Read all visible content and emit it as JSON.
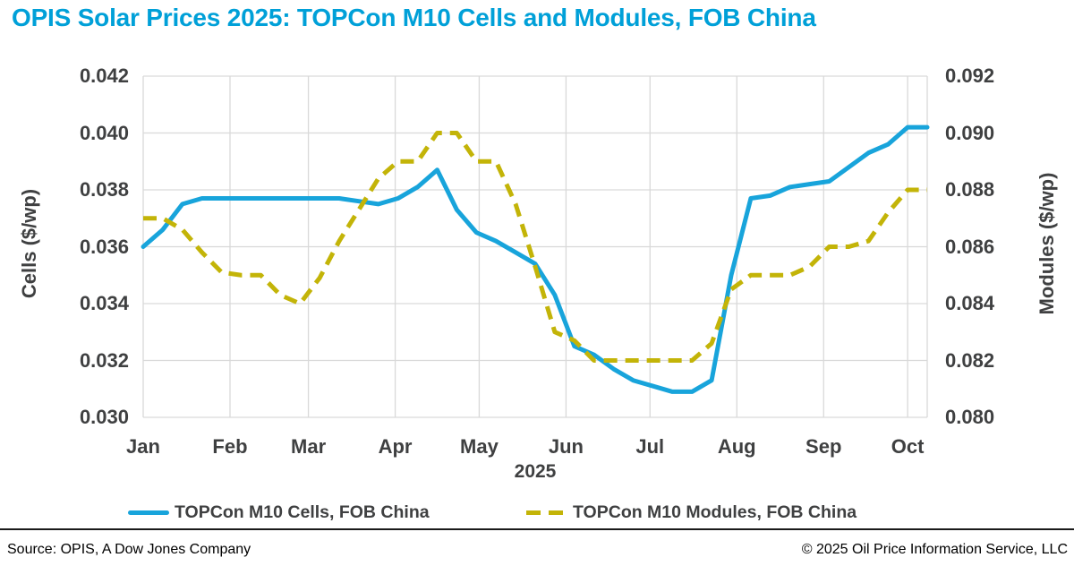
{
  "title": "OPIS Solar Prices 2025: TOPCon M10 Cells and Modules, FOB China",
  "colors": {
    "title": "#00A0D8",
    "cells_line": "#18A4DB",
    "modules_line": "#C3B408",
    "axis_text": "#3F4041",
    "grid": "#D9D9D9",
    "footer_rule": "#1A1A1A"
  },
  "chart_data": {
    "type": "line",
    "title": "OPIS Solar Prices 2025: TOPCon M10 Cells and Modules, FOB China",
    "grid": true,
    "legend_position": "bottom",
    "x_axis": {
      "label": "2025",
      "months": [
        "Jan",
        "Feb",
        "Mar",
        "Apr",
        "May",
        "Jun",
        "Jul",
        "Aug",
        "Sep",
        "Oct"
      ],
      "month_day_offsets": [
        0,
        31,
        59,
        90,
        120,
        151,
        181,
        212,
        243,
        273
      ],
      "total_days": 280
    },
    "left_axis": {
      "label": "Cells ($/wp)",
      "min": 0.03,
      "max": 0.042,
      "ticks": [
        "0.042",
        "0.040",
        "0.038",
        "0.036",
        "0.034",
        "0.032",
        "0.030"
      ]
    },
    "right_axis": {
      "label": "Modules ($/wp)",
      "min": 0.08,
      "max": 0.092,
      "ticks": [
        "0.092",
        "0.090",
        "0.088",
        "0.086",
        "0.084",
        "0.082",
        "0.080"
      ]
    },
    "series": [
      {
        "name": "TOPCon M10 Cells, FOB China",
        "axis": "left",
        "style": "solid",
        "color": "#18A4DB",
        "x_days": [
          0,
          7,
          14,
          21,
          28,
          35,
          42,
          49,
          56,
          63,
          70,
          77,
          84,
          91,
          98,
          105,
          112,
          119,
          126,
          133,
          140,
          147,
          154,
          161,
          168,
          175,
          182,
          189,
          196,
          203,
          210,
          217,
          224,
          231,
          238,
          245,
          252,
          259,
          266,
          273,
          280
        ],
        "values": [
          0.036,
          0.0366,
          0.0375,
          0.0377,
          0.0377,
          0.0377,
          0.0377,
          0.0377,
          0.0377,
          0.0377,
          0.0377,
          0.0376,
          0.0375,
          0.0377,
          0.0381,
          0.0387,
          0.0373,
          0.0365,
          0.0362,
          0.0358,
          0.0354,
          0.0343,
          0.0325,
          0.0322,
          0.0317,
          0.0313,
          0.0311,
          0.0309,
          0.0309,
          0.0313,
          0.035,
          0.0377,
          0.0378,
          0.0381,
          0.0382,
          0.0383,
          0.0388,
          0.0393,
          0.0396,
          0.0402,
          0.0402
        ]
      },
      {
        "name": "TOPCon M10 Modules, FOB China",
        "axis": "right",
        "style": "dashed",
        "color": "#C3B408",
        "x_days": [
          0,
          7,
          14,
          21,
          28,
          35,
          42,
          49,
          56,
          63,
          70,
          77,
          84,
          91,
          98,
          105,
          112,
          119,
          126,
          133,
          140,
          147,
          154,
          161,
          168,
          175,
          182,
          189,
          196,
          203,
          210,
          217,
          224,
          231,
          238,
          245,
          252,
          259,
          266,
          273,
          280
        ],
        "values": [
          0.087,
          0.087,
          0.0866,
          0.0858,
          0.0851,
          0.085,
          0.085,
          0.0843,
          0.084,
          0.0849,
          0.0862,
          0.0873,
          0.0884,
          0.089,
          0.089,
          0.09,
          0.09,
          0.089,
          0.089,
          0.0875,
          0.0853,
          0.083,
          0.0827,
          0.082,
          0.082,
          0.082,
          0.082,
          0.082,
          0.082,
          0.0826,
          0.0845,
          0.085,
          0.085,
          0.085,
          0.0853,
          0.086,
          0.086,
          0.0862,
          0.0872,
          0.088,
          0.088
        ]
      }
    ]
  },
  "legend": {
    "items": [
      {
        "label": "TOPCon M10 Cells, FOB China"
      },
      {
        "label": "TOPCon M10 Modules, FOB China"
      }
    ]
  },
  "footer": {
    "source": "Source: OPIS, A Dow Jones Company",
    "copyright": "© 2025 Oil Price Information Service, LLC"
  }
}
